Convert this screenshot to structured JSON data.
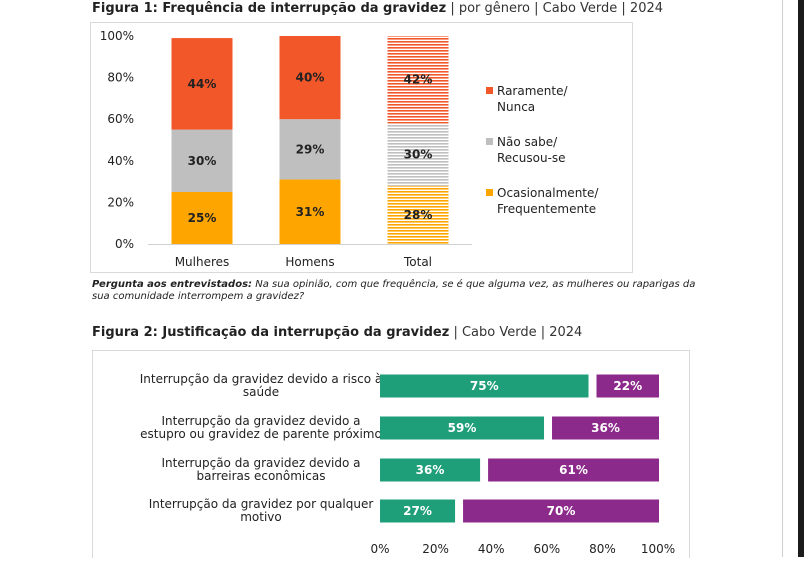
{
  "figure1": {
    "title_bold": "Figura 1: Frequência de interrupção da gravidez",
    "title_rest": "| por gênero | Cabo Verde | 2024",
    "caption_bold": "Pergunta aos entrevistados:",
    "caption_rest": " Na sua opinião, com que frequência, se é que alguma vez, as mulheres ou raparigas da sua comunidade interrompem a gravidez?"
  },
  "figure2": {
    "title_bold": "Figura 2: Justificação da interrupção da gravidez",
    "title_rest": "| Cabo Verde | 2024"
  },
  "chart_data": [
    {
      "type": "bar",
      "stacked": true,
      "orientation": "vertical",
      "categories": [
        "Mulheres",
        "Homens",
        "Total"
      ],
      "series": [
        {
          "name": "Ocasionalmente/ Frequentemente",
          "legend_lines": [
            "Ocasionalmente/",
            "Frequentemente"
          ],
          "values": [
            25,
            31,
            28
          ],
          "labels": [
            "25%",
            "31%",
            "28%"
          ],
          "color": "#FFA500"
        },
        {
          "name": "Não sabe/ Recusou-se",
          "legend_lines": [
            "Não sabe/",
            "Recusou-se"
          ],
          "values": [
            30,
            29,
            30
          ],
          "labels": [
            "30%",
            "29%",
            "30%"
          ],
          "color": "#BFBFBF"
        },
        {
          "name": "Raramente/ Nunca",
          "legend_lines": [
            "Raramente/",
            "Nunca"
          ],
          "values": [
            44,
            40,
            42
          ],
          "labels": [
            "44%",
            "40%",
            "42%"
          ],
          "color": "#F2572A"
        }
      ],
      "hatched_category": "Total",
      "yticks": [
        "0%",
        "20%",
        "40%",
        "60%",
        "80%",
        "100%"
      ],
      "ylim": [
        0,
        100
      ],
      "legend_position": "right"
    },
    {
      "type": "bar",
      "stacked": true,
      "orientation": "horizontal",
      "categories": [
        [
          "Interrupção da gravidez devido a risco à",
          "saúde"
        ],
        [
          "Interrupção da gravidez devido a",
          "estupro ou gravidez de parente próximo"
        ],
        [
          "Interrupção da gravidez devido a",
          "barreiras econômicas"
        ],
        [
          "Interrupção da gravidez por qualquer",
          "motivo"
        ]
      ],
      "series": [
        {
          "values": [
            75,
            59,
            36,
            27
          ],
          "labels": [
            "75%",
            "59%",
            "36%",
            "27%"
          ],
          "color": "#1E9E79"
        },
        {
          "values": [
            22,
            36,
            61,
            70
          ],
          "labels": [
            "22%",
            "36%",
            "61%",
            "70%"
          ],
          "color": "#8B2A8A"
        }
      ],
      "xticks": [
        "0%",
        "20%",
        "40%",
        "60%",
        "80%",
        "100%"
      ],
      "xlim": [
        0,
        100
      ],
      "legend_position": "none"
    }
  ]
}
